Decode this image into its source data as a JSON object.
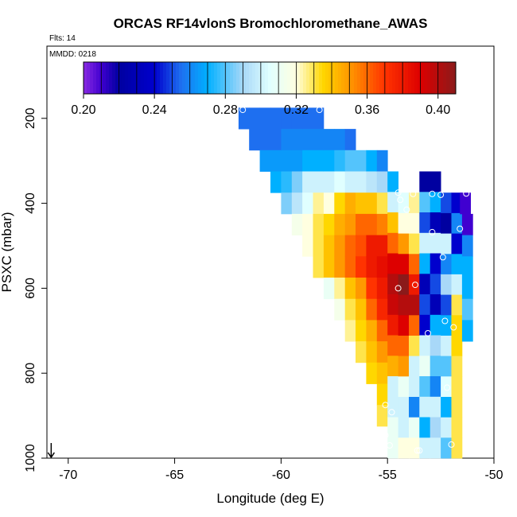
{
  "chart_data": {
    "type": "heatmap",
    "title": "ORCAS RF14vlonS Bromochloromethane_AWAS",
    "flights_label": "Flts: 14",
    "date_label": "MMDD: 0218",
    "xlabel": "Longitude (deg E)",
    "ylabel": "PSXC (mbar)",
    "xlim": [
      -71,
      -50
    ],
    "ylim": [
      1000,
      30
    ],
    "x_ticks": [
      -70,
      -65,
      -60,
      -55,
      -50
    ],
    "y_ticks": [
      200,
      400,
      600,
      800,
      1000
    ],
    "colorbar": {
      "min": 0.2,
      "max": 0.41,
      "ticks": [
        0.2,
        0.24,
        0.28,
        0.32,
        0.36,
        0.4
      ],
      "tick_labels": [
        "0.20",
        "0.24",
        "0.28",
        "0.32",
        "0.36",
        "0.40"
      ],
      "stops": [
        {
          "v": 0.2,
          "c": "#8a2be2"
        },
        {
          "v": 0.21,
          "c": "#4000d0"
        },
        {
          "v": 0.22,
          "c": "#0000a0"
        },
        {
          "v": 0.24,
          "c": "#0000cd"
        },
        {
          "v": 0.255,
          "c": "#1e6ff0"
        },
        {
          "v": 0.27,
          "c": "#00b0ff"
        },
        {
          "v": 0.29,
          "c": "#a8d8f8"
        },
        {
          "v": 0.305,
          "c": "#e0ffff"
        },
        {
          "v": 0.32,
          "c": "#ffffe0"
        },
        {
          "v": 0.335,
          "c": "#ffd700"
        },
        {
          "v": 0.35,
          "c": "#ff9900"
        },
        {
          "v": 0.37,
          "c": "#ff3300"
        },
        {
          "v": 0.39,
          "c": "#dd0000"
        },
        {
          "v": 0.41,
          "c": "#8b1a1a"
        }
      ]
    },
    "column_width_deg": 0.5,
    "columns": [
      {
        "lon": -61.75,
        "top": 175,
        "bottom": 225,
        "values": [
          0.255
        ]
      },
      {
        "lon": -61.25,
        "top": 175,
        "bottom": 275,
        "values": [
          0.255,
          0.255
        ]
      },
      {
        "lon": -60.75,
        "top": 175,
        "bottom": 325,
        "values": [
          0.255,
          0.255,
          0.265
        ]
      },
      {
        "lon": -60.25,
        "top": 175,
        "bottom": 375,
        "values": [
          0.255,
          0.255,
          0.265,
          0.27
        ]
      },
      {
        "lon": -59.75,
        "top": 175,
        "bottom": 425,
        "values": [
          0.255,
          0.26,
          0.265,
          0.275,
          0.285
        ]
      },
      {
        "lon": -59.25,
        "top": 175,
        "bottom": 475,
        "values": [
          0.255,
          0.26,
          0.265,
          0.285,
          0.295,
          0.315
        ]
      },
      {
        "lon": -58.75,
        "top": 175,
        "bottom": 525,
        "values": [
          0.255,
          0.26,
          0.27,
          0.3,
          0.305,
          0.32,
          0.32
        ]
      },
      {
        "lon": -58.25,
        "top": 175,
        "bottom": 575,
        "values": [
          0.255,
          0.26,
          0.27,
          0.3,
          0.325,
          0.33,
          0.33,
          0.33
        ]
      },
      {
        "lon": -57.75,
        "top": 225,
        "bottom": 625,
        "values": [
          0.26,
          0.27,
          0.3,
          0.32,
          0.335,
          0.34,
          0.34,
          0.31
        ]
      },
      {
        "lon": -57.25,
        "top": 225,
        "bottom": 675,
        "values": [
          0.26,
          0.275,
          0.305,
          0.335,
          0.345,
          0.35,
          0.35,
          0.325,
          0.315
        ]
      },
      {
        "lon": -56.75,
        "top": 225,
        "bottom": 725,
        "values": [
          0.255,
          0.28,
          0.3,
          0.345,
          0.35,
          0.36,
          0.36,
          0.34,
          0.33,
          0.325
        ]
      },
      {
        "lon": -56.25,
        "top": 275,
        "bottom": 775,
        "values": [
          0.28,
          0.3,
          0.34,
          0.36,
          0.365,
          0.37,
          0.35,
          0.34,
          0.335,
          0.33
        ]
      },
      {
        "lon": -55.75,
        "top": 275,
        "bottom": 825,
        "values": [
          0.27,
          0.295,
          0.34,
          0.36,
          0.38,
          0.38,
          0.37,
          0.36,
          0.345,
          0.34,
          0.335
        ]
      },
      {
        "lon": -55.25,
        "top": 275,
        "bottom": 925,
        "values": [
          0.26,
          0.29,
          0.33,
          0.355,
          0.38,
          0.385,
          0.38,
          0.375,
          0.36,
          0.35,
          0.34,
          0.335,
          0.33
        ]
      },
      {
        "lon": -54.75,
        "top": 325,
        "bottom": 1000,
        "values": [
          0.27,
          0.3,
          0.34,
          0.36,
          0.39,
          0.4,
          0.395,
          0.38,
          0.36,
          0.345,
          0.3,
          0.3,
          0.31,
          0.31
        ]
      },
      {
        "lon": -54.25,
        "top": 375,
        "bottom": 1000,
        "values": [
          0.305,
          0.32,
          0.35,
          0.39,
          0.41,
          0.4,
          0.39,
          0.36,
          0.35,
          0.31,
          0.3,
          0.3,
          0.32
        ]
      },
      {
        "lon": -53.75,
        "top": 375,
        "bottom": 1000,
        "values": [
          0.325,
          0.32,
          0.33,
          0.36,
          0.38,
          0.4,
          0.36,
          0.33,
          0.3,
          0.3,
          0.26,
          0.31,
          0.32
        ]
      },
      {
        "lon": -53.25,
        "top": 325,
        "bottom": 1000,
        "values": [
          0.22,
          0.28,
          0.25,
          0.3,
          0.27,
          0.23,
          0.25,
          0.24,
          0.3,
          0.31,
          0.28,
          0.3,
          0.27,
          0.3
        ]
      },
      {
        "lon": -52.75,
        "top": 325,
        "bottom": 1000,
        "values": [
          0.22,
          0.27,
          0.23,
          0.3,
          0.24,
          0.25,
          0.23,
          0.27,
          0.29,
          0.28,
          0.26,
          0.3,
          0.29,
          0.3
        ]
      },
      {
        "lon": -52.25,
        "top": 375,
        "bottom": 1000,
        "values": [
          0.25,
          0.22,
          0.3,
          0.26,
          0.29,
          0.25,
          0.27,
          0.3,
          0.28,
          0.305,
          0.27,
          0.3,
          0.28
        ]
      },
      {
        "lon": -51.75,
        "top": 375,
        "bottom": 1000,
        "values": [
          0.24,
          0.26,
          0.24,
          0.27,
          0.3,
          0.33,
          0.335,
          0.335,
          0.33,
          0.33,
          0.33,
          0.33,
          0.33
        ]
      },
      {
        "lon": -51.25,
        "top": 425,
        "bottom": 725,
        "values": [
          0.21,
          0.26,
          0.27,
          0.27,
          0.28,
          0.27
        ]
      },
      {
        "lon": -51.35,
        "top": 375,
        "bottom": 425,
        "values": [
          0.21
        ]
      }
    ],
    "sample_points": [
      {
        "lon": -61.8,
        "p": 180
      },
      {
        "lon": -58.2,
        "p": 180
      },
      {
        "lon": -54.5,
        "p": 375
      },
      {
        "lon": -54.4,
        "p": 392
      },
      {
        "lon": -54.1,
        "p": 415
      },
      {
        "lon": -53.8,
        "p": 378
      },
      {
        "lon": -52.9,
        "p": 378
      },
      {
        "lon": -52.5,
        "p": 380
      },
      {
        "lon": -51.3,
        "p": 377
      },
      {
        "lon": -51.6,
        "p": 460
      },
      {
        "lon": -52.9,
        "p": 468
      },
      {
        "lon": -52.4,
        "p": 527
      },
      {
        "lon": -53.7,
        "p": 592
      },
      {
        "lon": -54.5,
        "p": 600
      },
      {
        "lon": -52.3,
        "p": 677
      },
      {
        "lon": -51.9,
        "p": 692
      },
      {
        "lon": -53.1,
        "p": 706
      },
      {
        "lon": -52.2,
        "p": 834
      },
      {
        "lon": -55.1,
        "p": 875
      },
      {
        "lon": -54.8,
        "p": 892
      },
      {
        "lon": -55.1,
        "p": 946
      },
      {
        "lon": -54.9,
        "p": 970
      },
      {
        "lon": -53.6,
        "p": 982
      },
      {
        "lon": -53.5,
        "p": 982
      },
      {
        "lon": -52.0,
        "p": 968
      }
    ],
    "arrow": {
      "lon": -70.8,
      "p": 1000,
      "direction": "down"
    }
  }
}
